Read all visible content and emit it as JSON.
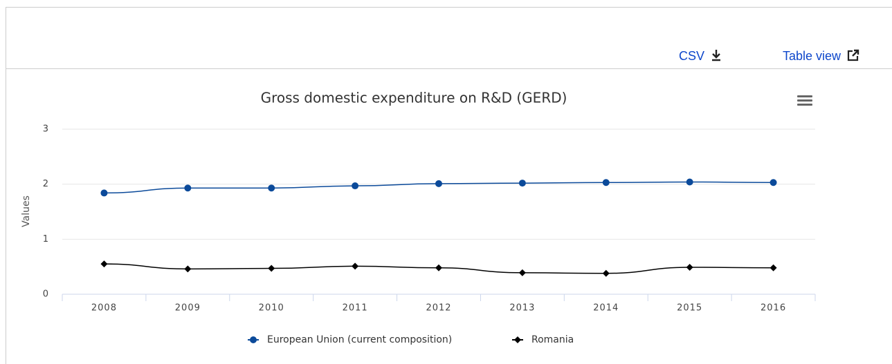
{
  "toolbar": {
    "csv": "CSV",
    "table_view": "Table view"
  },
  "chart_data": {
    "type": "line",
    "title": "Gross domestic expenditure on R&D (GERD)",
    "y_label": "Values",
    "categories": [
      "2008",
      "2009",
      "2010",
      "2011",
      "2012",
      "2013",
      "2014",
      "2015",
      "2016"
    ],
    "series": [
      {
        "name": "European Union (current composition)",
        "color": "#0b4a9a",
        "marker": "circle",
        "values": [
          1.84,
          1.93,
          1.93,
          1.97,
          2.01,
          2.02,
          2.03,
          2.04,
          2.03
        ]
      },
      {
        "name": "Romania",
        "color": "#000000",
        "marker": "diamond",
        "values": [
          0.55,
          0.46,
          0.47,
          0.51,
          0.48,
          0.39,
          0.38,
          0.49,
          0.48
        ]
      }
    ],
    "ylim": [
      0,
      3
    ],
    "yticks": [
      0,
      1,
      2,
      3
    ],
    "grid": true,
    "legend": "bottom"
  }
}
